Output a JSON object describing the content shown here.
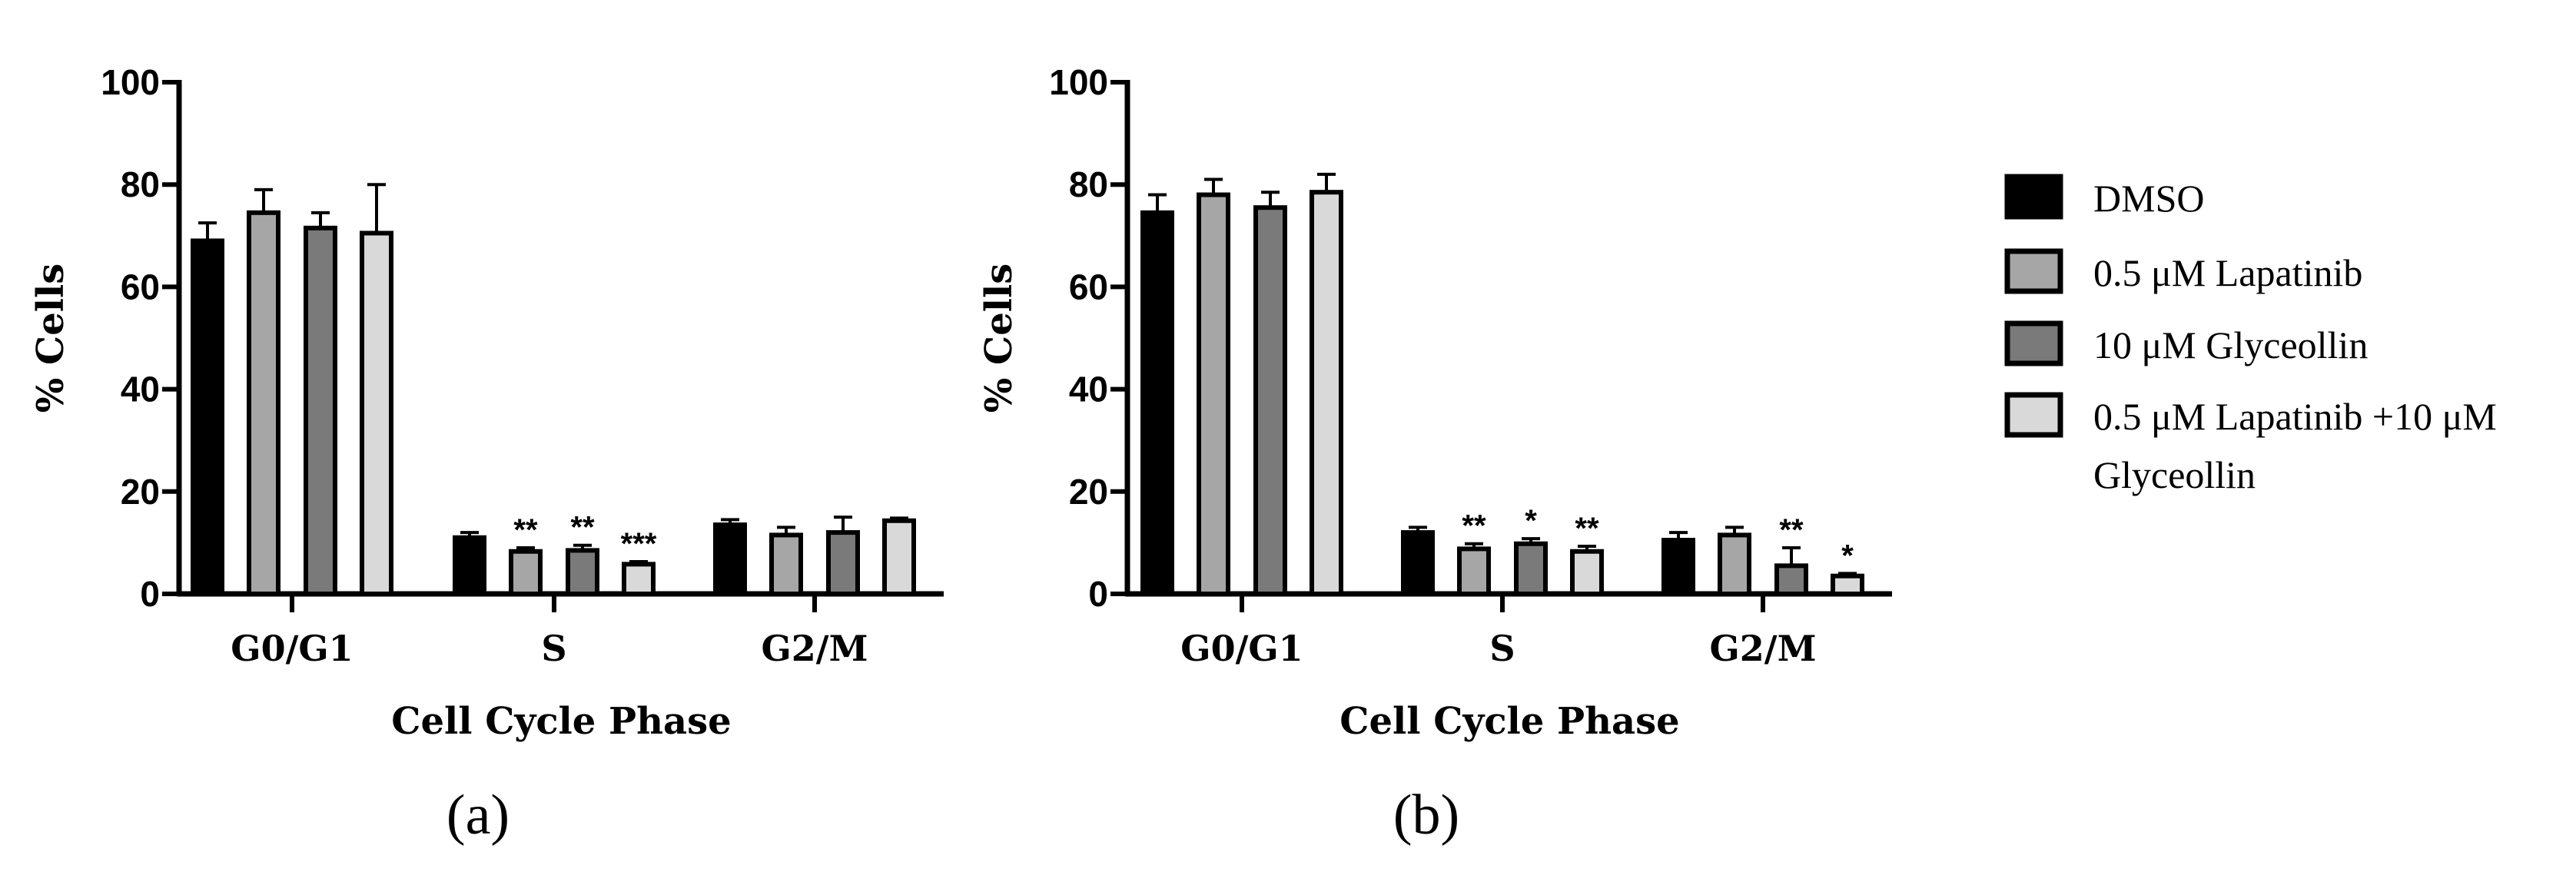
{
  "colors": {
    "DMSO": "#000000",
    "lap": "#a6a6a6",
    "gly": "#7a7a7a",
    "combo": "#d9d9d9",
    "stroke": "#000000"
  },
  "legend": {
    "items": [
      {
        "key": "DMSO",
        "lines": [
          "DMSO"
        ]
      },
      {
        "key": "lap",
        "lines": [
          "0.5 μM Lapatinib"
        ]
      },
      {
        "key": "gly",
        "lines": [
          "10 μM Glyceollin"
        ]
      },
      {
        "key": "combo",
        "lines": [
          "0.5 μM Lapatinib +10 μM",
          "Glyceollin"
        ]
      }
    ]
  },
  "chart_data": [
    {
      "type": "bar",
      "panel_label": "(a)",
      "title": "",
      "xlabel": "Cell Cycle Phase",
      "ylabel": "% Cells",
      "ylim": [
        0,
        100
      ],
      "yticks": [
        0,
        20,
        40,
        60,
        80,
        100
      ],
      "categories": [
        "G0/G1",
        "S",
        "G2/M"
      ],
      "series": [
        {
          "name": "DMSO",
          "key": "DMSO",
          "values": [
            69,
            11,
            13.5
          ],
          "errors": [
            3.5,
            1,
            1
          ],
          "sig": [
            "",
            "",
            ""
          ]
        },
        {
          "name": "0.5 μM Lapatinib",
          "key": "lap",
          "values": [
            74.5,
            8.3,
            11.5
          ],
          "errors": [
            4.5,
            0.7,
            1.5
          ],
          "sig": [
            "",
            "**",
            ""
          ]
        },
        {
          "name": "10 μM Glyceollin",
          "key": "gly",
          "values": [
            71.5,
            8.5,
            12
          ],
          "errors": [
            3,
            1,
            3
          ],
          "sig": [
            "",
            "**",
            ""
          ]
        },
        {
          "name": "0.5 μM Lapatinib +10 μM Glyceollin",
          "key": "combo",
          "values": [
            70.5,
            5.8,
            14.3
          ],
          "errors": [
            9.5,
            0.5,
            0.5
          ],
          "sig": [
            "",
            "***",
            ""
          ]
        }
      ]
    },
    {
      "type": "bar",
      "panel_label": "(b)",
      "title": "",
      "xlabel": "Cell Cycle Phase",
      "ylabel": "% Cells",
      "ylim": [
        0,
        100
      ],
      "yticks": [
        0,
        20,
        40,
        60,
        80,
        100
      ],
      "categories": [
        "G0/G1",
        "S",
        "G2/M"
      ],
      "series": [
        {
          "name": "DMSO",
          "key": "DMSO",
          "values": [
            74.5,
            12,
            10.5
          ],
          "errors": [
            3.5,
            1,
            1.5
          ],
          "sig": [
            "",
            "",
            ""
          ]
        },
        {
          "name": "0.5 μM Lapatinib",
          "key": "lap",
          "values": [
            78,
            8.8,
            11.5
          ],
          "errors": [
            3,
            1,
            1.5
          ],
          "sig": [
            "",
            "**",
            ""
          ]
        },
        {
          "name": "10 μM Glyceollin",
          "key": "gly",
          "values": [
            75.5,
            9.8,
            5.5
          ],
          "errors": [
            3,
            1,
            3.5
          ],
          "sig": [
            "",
            "*",
            "**"
          ]
        },
        {
          "name": "0.5 μM Lapatinib +10 μM Glyceollin",
          "key": "combo",
          "values": [
            78.5,
            8.3,
            3.5
          ],
          "errors": [
            3.5,
            1,
            0.5
          ],
          "sig": [
            "",
            "**",
            "*"
          ]
        }
      ]
    }
  ]
}
